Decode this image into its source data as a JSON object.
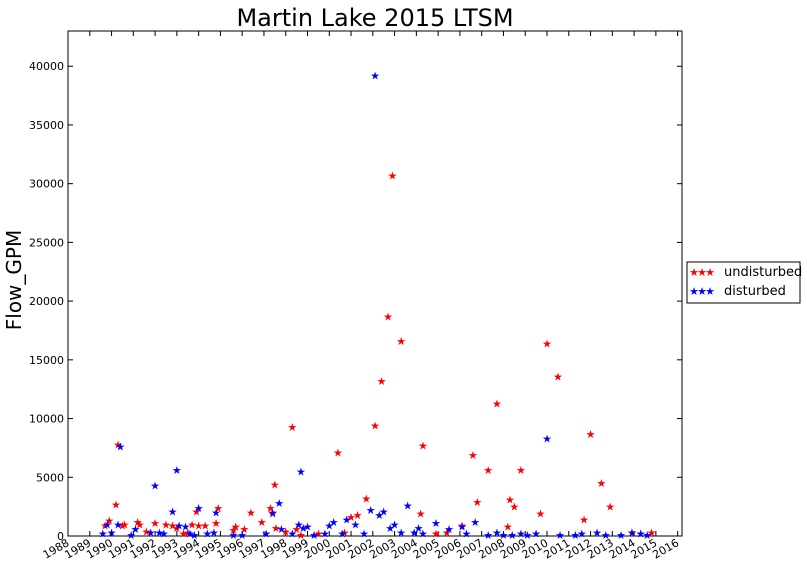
{
  "chart_data": {
    "type": "scatter",
    "title": "Martin Lake 2015 LTSM",
    "ylabel": "Flow_GPM",
    "xlabel": "",
    "xlim": [
      1988,
      2016.2
    ],
    "ylim": [
      0,
      43000
    ],
    "xticks": [
      "1988",
      "1989",
      "1990",
      "1991",
      "1992",
      "1993",
      "1994",
      "1995",
      "1996",
      "1997",
      "1998",
      "1999",
      "2000",
      "2001",
      "2002",
      "2003",
      "2004",
      "2005",
      "2006",
      "2007",
      "2008",
      "2009",
      "2010",
      "2011",
      "2012",
      "2013",
      "2014",
      "2015",
      "2016"
    ],
    "yticks": [
      0,
      5000,
      10000,
      15000,
      20000,
      25000,
      30000,
      35000,
      40000
    ],
    "legend_position": "right",
    "marker": "★",
    "series": [
      {
        "name": "undisturbed",
        "color": "#ff0000",
        "points": [
          [
            1989.7,
            900
          ],
          [
            1989.9,
            1300
          ],
          [
            1990.2,
            2700
          ],
          [
            1990.3,
            7800
          ],
          [
            1990.5,
            900
          ],
          [
            1990.6,
            1000
          ],
          [
            1991.2,
            1200
          ],
          [
            1991.3,
            1000
          ],
          [
            1991.6,
            400
          ],
          [
            1992.0,
            1100
          ],
          [
            1992.5,
            1000
          ],
          [
            1992.8,
            900
          ],
          [
            1993.0,
            700
          ],
          [
            1993.3,
            200
          ],
          [
            1993.5,
            300
          ],
          [
            1993.7,
            1000
          ],
          [
            1993.9,
            2100
          ],
          [
            1994.0,
            900
          ],
          [
            1994.3,
            900
          ],
          [
            1994.8,
            1100
          ],
          [
            1994.9,
            2400
          ],
          [
            1995.6,
            500
          ],
          [
            1995.7,
            800
          ],
          [
            1996.1,
            600
          ],
          [
            1996.4,
            2000
          ],
          [
            1996.9,
            1200
          ],
          [
            1997.3,
            2400
          ],
          [
            1997.4,
            1900
          ],
          [
            1997.5,
            4400
          ],
          [
            1997.55,
            700
          ],
          [
            1998.0,
            400
          ],
          [
            1998.3,
            9300
          ],
          [
            1998.5,
            600
          ],
          [
            1998.7,
            100
          ],
          [
            1999.5,
            200
          ],
          [
            2000.4,
            7100
          ],
          [
            2000.7,
            300
          ],
          [
            2001.0,
            1600
          ],
          [
            2001.3,
            1800
          ],
          [
            2001.7,
            3200
          ],
          [
            2002.1,
            9400
          ],
          [
            2002.4,
            13200
          ],
          [
            2002.7,
            18700
          ],
          [
            2002.9,
            30700
          ],
          [
            2003.3,
            16600
          ],
          [
            2004.2,
            1900
          ],
          [
            2004.3,
            7700
          ],
          [
            2004.9,
            200
          ],
          [
            2005.4,
            300
          ],
          [
            2006.1,
            900
          ],
          [
            2006.6,
            6900
          ],
          [
            2006.8,
            2900
          ],
          [
            2007.3,
            5600
          ],
          [
            2007.7,
            11300
          ],
          [
            2008.2,
            800
          ],
          [
            2008.3,
            3100
          ],
          [
            2008.5,
            2500
          ],
          [
            2008.8,
            5600
          ],
          [
            2009.7,
            1900
          ],
          [
            2010.0,
            16400
          ],
          [
            2010.5,
            13600
          ],
          [
            2011.7,
            1400
          ],
          [
            2012.0,
            8700
          ],
          [
            2012.5,
            4500
          ],
          [
            2012.9,
            2500
          ],
          [
            2013.9,
            300
          ],
          [
            2014.3,
            200
          ],
          [
            2014.8,
            300
          ]
        ]
      },
      {
        "name": "disturbed",
        "color": "#0000ff",
        "points": [
          [
            1989.6,
            200
          ],
          [
            1989.8,
            1000
          ],
          [
            1990.0,
            300
          ],
          [
            1990.3,
            1000
          ],
          [
            1990.4,
            7600
          ],
          [
            1990.9,
            100
          ],
          [
            1991.1,
            600
          ],
          [
            1991.8,
            300
          ],
          [
            1992.0,
            4300
          ],
          [
            1992.2,
            300
          ],
          [
            1992.4,
            200
          ],
          [
            1992.8,
            2100
          ],
          [
            1993.0,
            5600
          ],
          [
            1993.1,
            900
          ],
          [
            1993.4,
            800
          ],
          [
            1993.6,
            200
          ],
          [
            1993.8,
            100
          ],
          [
            1994.0,
            2400
          ],
          [
            1994.4,
            200
          ],
          [
            1994.7,
            300
          ],
          [
            1994.8,
            2000
          ],
          [
            1995.6,
            100
          ],
          [
            1996.0,
            100
          ],
          [
            1997.1,
            200
          ],
          [
            1997.4,
            2000
          ],
          [
            1997.7,
            2800
          ],
          [
            1997.8,
            600
          ],
          [
            1998.3,
            200
          ],
          [
            1998.6,
            1000
          ],
          [
            1998.7,
            5500
          ],
          [
            1998.8,
            700
          ],
          [
            1999.0,
            800
          ],
          [
            1999.3,
            100
          ],
          [
            1999.8,
            200
          ],
          [
            2000.0,
            900
          ],
          [
            2000.2,
            1200
          ],
          [
            2000.6,
            200
          ],
          [
            2000.8,
            1400
          ],
          [
            2001.2,
            1000
          ],
          [
            2001.6,
            200
          ],
          [
            2001.9,
            2200
          ],
          [
            2002.1,
            39200
          ],
          [
            2002.3,
            1800
          ],
          [
            2002.5,
            2100
          ],
          [
            2002.8,
            700
          ],
          [
            2003.0,
            1000
          ],
          [
            2003.3,
            300
          ],
          [
            2003.6,
            2600
          ],
          [
            2003.9,
            300
          ],
          [
            2004.1,
            700
          ],
          [
            2004.3,
            200
          ],
          [
            2004.9,
            1100
          ],
          [
            2005.5,
            600
          ],
          [
            2006.1,
            800
          ],
          [
            2006.3,
            200
          ],
          [
            2006.7,
            1200
          ],
          [
            2007.3,
            100
          ],
          [
            2007.7,
            300
          ],
          [
            2008.0,
            100
          ],
          [
            2008.4,
            100
          ],
          [
            2008.8,
            200
          ],
          [
            2009.1,
            100
          ],
          [
            2009.5,
            200
          ],
          [
            2010.0,
            8300
          ],
          [
            2010.6,
            100
          ],
          [
            2011.3,
            100
          ],
          [
            2011.6,
            200
          ],
          [
            2012.3,
            300
          ],
          [
            2012.7,
            100
          ],
          [
            2013.4,
            100
          ],
          [
            2013.9,
            300
          ],
          [
            2014.3,
            200
          ],
          [
            2014.6,
            100
          ]
        ]
      }
    ]
  }
}
